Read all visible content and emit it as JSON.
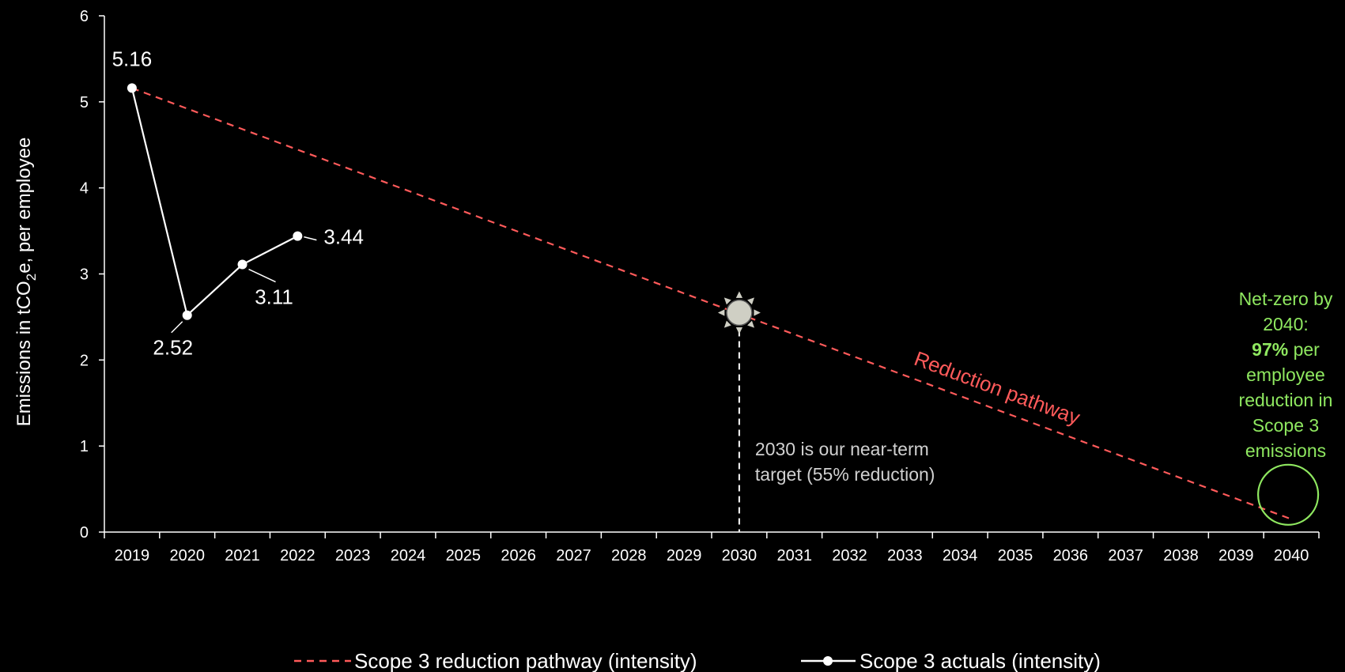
{
  "chart_data": {
    "type": "line",
    "ylabel_parts": [
      "Emissions in tCO",
      "2",
      "e, per employee"
    ],
    "ylim": [
      0,
      6
    ],
    "yticks": [
      "0",
      "1",
      "2",
      "3",
      "4",
      "5",
      "6"
    ],
    "x": [
      "2019",
      "2020",
      "2021",
      "2022",
      "2023",
      "2024",
      "2025",
      "2026",
      "2027",
      "2028",
      "2029",
      "2030",
      "2031",
      "2032",
      "2033",
      "2034",
      "2035",
      "2036",
      "2037",
      "2038",
      "2039",
      "2040"
    ],
    "series": [
      {
        "name": "Scope 3 reduction pathway (intensity)",
        "style": "dashed",
        "color": "#ff5a5a",
        "points": [
          {
            "x": "2019",
            "y": 5.16
          },
          {
            "x": "2040",
            "y": 0.15
          }
        ]
      },
      {
        "name": "Scope 3 actuals (intensity)",
        "style": "solid-markers",
        "color": "#ffffff",
        "points": [
          {
            "x": "2019",
            "y": 5.16,
            "label": "5.16"
          },
          {
            "x": "2020",
            "y": 2.52,
            "label": "2.52"
          },
          {
            "x": "2021",
            "y": 3.11,
            "label": "3.11"
          },
          {
            "x": "2022",
            "y": 3.44,
            "label": "3.44"
          }
        ]
      }
    ],
    "annotations": {
      "pathway_label": "Reduction pathway",
      "near_term": {
        "x": "2030",
        "y": 2.55,
        "lines": [
          "2030 is our near-term",
          "target (55% reduction)"
        ]
      },
      "net_zero": {
        "x": "2040",
        "y": 0.25,
        "lines_before": [
          "Net-zero by",
          "2040:"
        ],
        "bold": "97%",
        "bold_suffix": " per",
        "lines_after": [
          "employee",
          "reduction in",
          "Scope 3",
          "emissions"
        ]
      }
    },
    "legend_position": "bottom-center",
    "colors": {
      "background": "#000000",
      "axis": "#ffffff",
      "pathway": "#ff5a5a",
      "actuals": "#ffffff",
      "net_zero": "#8fe860",
      "sun": "#cfcfc4"
    }
  }
}
